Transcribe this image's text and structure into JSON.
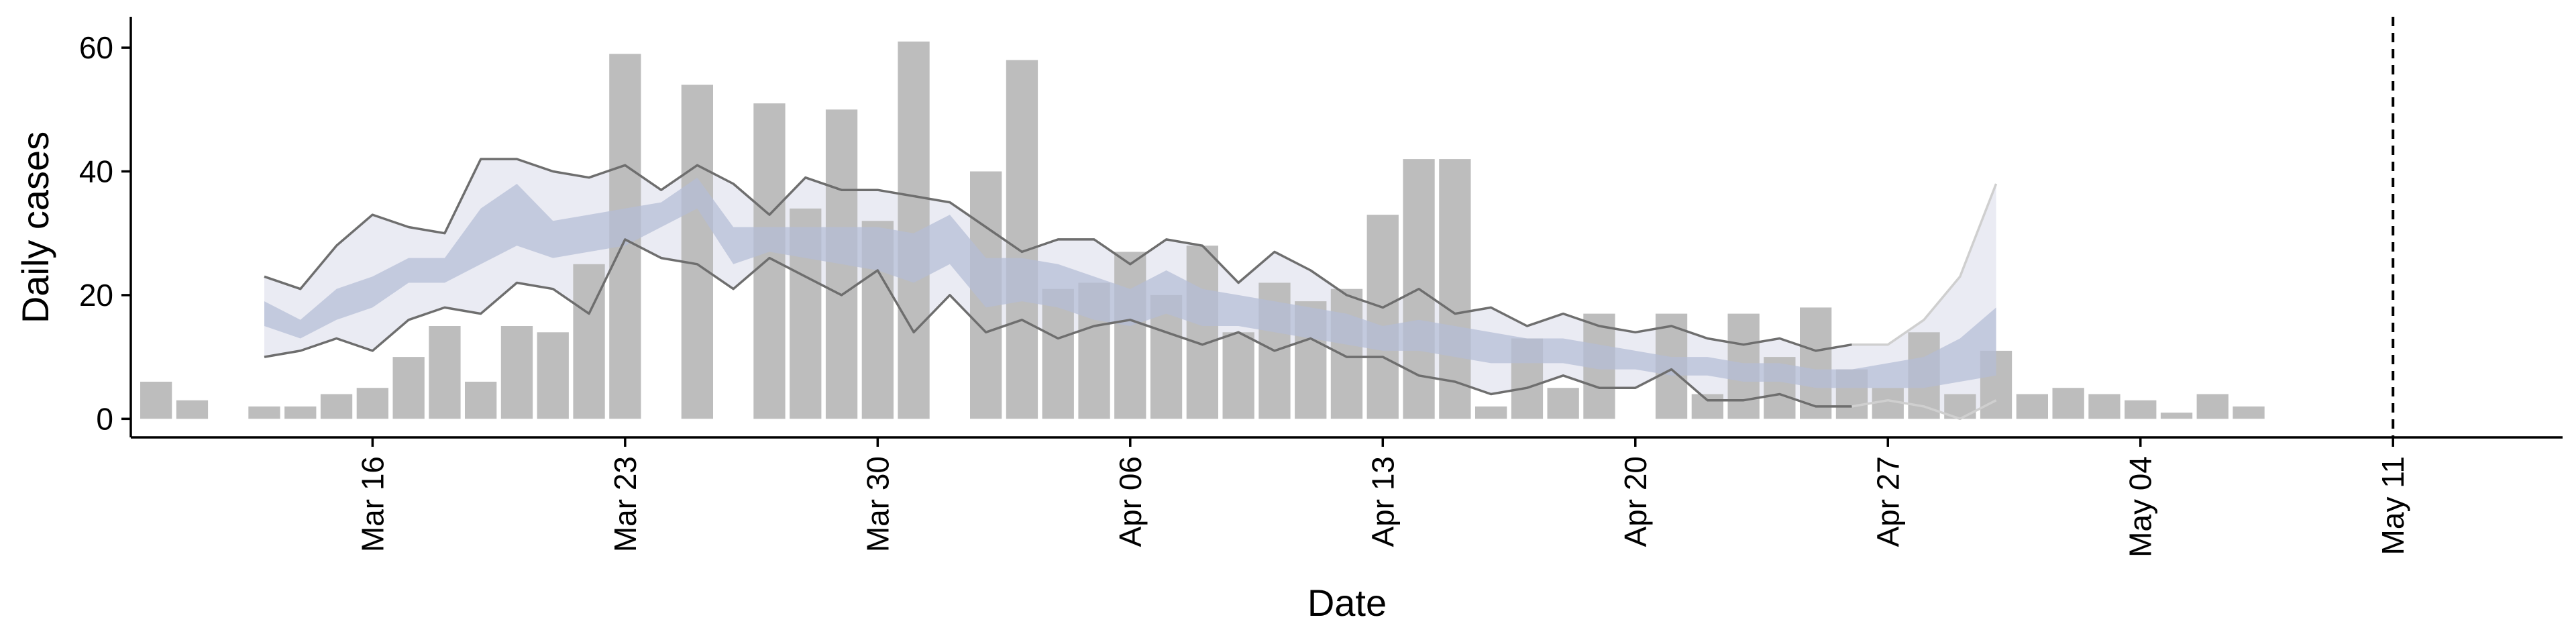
{
  "chart_data": {
    "type": "bar",
    "title": "",
    "xlabel": "Date",
    "ylabel": "Daily cases",
    "x_tick_labels": [
      "Mar 16",
      "Mar 23",
      "Mar 30",
      "Apr 06",
      "Apr 13",
      "Apr 20",
      "Apr 27",
      "May 04",
      "May 11"
    ],
    "x_tick_days": [
      16,
      23,
      30,
      37,
      44,
      51,
      58,
      65,
      72
    ],
    "x_range_days": [
      9.3,
      76.7
    ],
    "y_ticks": [
      0,
      20,
      40,
      60
    ],
    "ylim": [
      -3,
      65
    ],
    "grid": false,
    "legend": "none",
    "vline_day": 72,
    "colors": {
      "bars": "#bdbdbd",
      "outer_band": "#e6e8f1",
      "inner_band": "#b4bdd6",
      "bound_lines": "#6e6e6e",
      "forecast_lines": "#cfcfcf",
      "vline": "#000000"
    },
    "bars": {
      "name": "Daily cases",
      "start_day": 10,
      "values": [
        6,
        3,
        0,
        2,
        2,
        4,
        5,
        10,
        15,
        6,
        15,
        14,
        25,
        59,
        0,
        54,
        0,
        51,
        34,
        50,
        32,
        61,
        0,
        40,
        58,
        21,
        22,
        27,
        20,
        28,
        14,
        22,
        19,
        21,
        33,
        42,
        42,
        2,
        13,
        5,
        17,
        0,
        17,
        4,
        17,
        10,
        18,
        8,
        5,
        14,
        4,
        11,
        4,
        5,
        4,
        3,
        1,
        4,
        2
      ]
    },
    "bands": {
      "start_day": 13,
      "outer_upper": [
        23,
        21,
        28,
        33,
        31,
        30,
        42,
        42,
        40,
        39,
        41,
        37,
        41,
        38,
        33,
        39,
        37,
        37,
        36,
        35,
        31,
        27,
        29,
        29,
        25,
        29,
        28,
        22,
        27,
        24,
        20,
        18,
        21,
        17,
        18,
        15,
        17,
        15,
        14,
        15,
        13,
        12,
        13,
        11,
        12,
        12,
        16,
        23,
        38
      ],
      "inner_upper": [
        19,
        16,
        21,
        23,
        26,
        26,
        34,
        38,
        32,
        33,
        34,
        35,
        39,
        31,
        31,
        31,
        31,
        31,
        30,
        33,
        26,
        26,
        25,
        23,
        21,
        24,
        21,
        20,
        19,
        18,
        17,
        15,
        16,
        15,
        14,
        13,
        13,
        12,
        11,
        10,
        10,
        9,
        9,
        8,
        8,
        9,
        10,
        13,
        18
      ],
      "inner_lower": [
        15,
        13,
        16,
        18,
        22,
        22,
        25,
        28,
        26,
        27,
        28,
        31,
        34,
        25,
        27,
        26,
        25,
        24,
        22,
        25,
        18,
        19,
        18,
        16,
        15,
        17,
        15,
        15,
        14,
        13,
        12,
        11,
        11,
        10,
        9,
        9,
        9,
        8,
        8,
        7,
        7,
        6,
        6,
        5,
        5,
        5,
        5,
        6,
        7
      ],
      "outer_lower": [
        10,
        11,
        13,
        11,
        16,
        18,
        17,
        22,
        21,
        17,
        29,
        26,
        25,
        21,
        26,
        23,
        20,
        24,
        14,
        20,
        14,
        16,
        13,
        15,
        16,
        14,
        12,
        14,
        11,
        13,
        10,
        10,
        7,
        6,
        4,
        5,
        7,
        5,
        5,
        8,
        3,
        3,
        4,
        2,
        2,
        3,
        2,
        0,
        3
      ],
      "forecast_from_day": 57
    }
  }
}
